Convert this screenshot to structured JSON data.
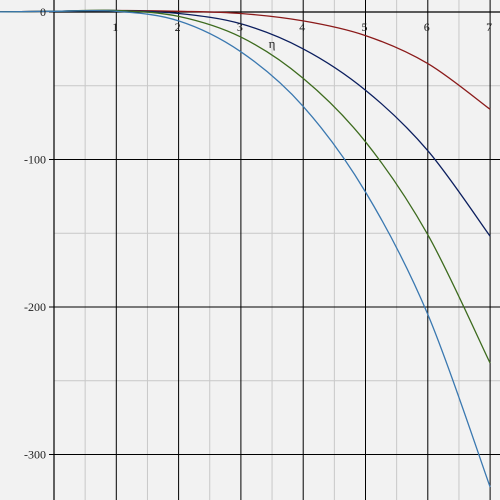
{
  "chart_data": {
    "type": "line",
    "xlabel": "η",
    "ylabel": "",
    "xlim": [
      -1,
      7
    ],
    "ylim": [
      -327,
      3
    ],
    "x_ticks": [
      1,
      2,
      3,
      4,
      5,
      6,
      7
    ],
    "y_ticks": [
      0,
      -100,
      -200,
      -300
    ],
    "x_tick_labels": [
      "1",
      "2",
      "3",
      "4",
      "5",
      "6",
      "7"
    ],
    "y_tick_labels": [
      "0",
      "-100",
      "-200",
      "-300"
    ],
    "grid": true,
    "series": [
      {
        "color": "#8b1a1a",
        "x": [
          -1,
          0,
          1,
          2,
          3,
          4,
          5,
          6,
          7
        ],
        "y": [
          0,
          0.5,
          1,
          0.5,
          -1,
          -6,
          -16,
          -35,
          -66
        ]
      },
      {
        "color": "#0b1e5e",
        "x": [
          -1,
          0,
          1,
          2,
          3,
          4,
          5,
          6,
          7
        ],
        "y": [
          0,
          0.5,
          1,
          -1,
          -8,
          -25,
          -53,
          -94,
          -152
        ]
      },
      {
        "color": "#3d6b1e",
        "x": [
          -1,
          0,
          1,
          2,
          3,
          4,
          5,
          6,
          7
        ],
        "y": [
          0,
          0.5,
          1,
          -3,
          -17,
          -45,
          -88,
          -151,
          -238
        ]
      },
      {
        "color": "#3a78b0",
        "x": [
          -1,
          0,
          1,
          2,
          3,
          4,
          5,
          6,
          7
        ],
        "y": [
          0,
          0.5,
          0.5,
          -6,
          -27,
          -64,
          -122,
          -205,
          -322
        ]
      }
    ]
  }
}
